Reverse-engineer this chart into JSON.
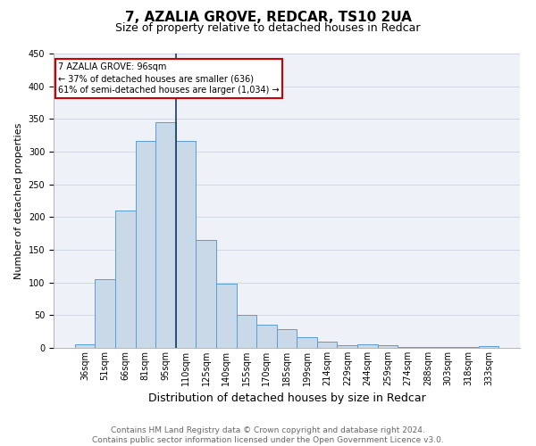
{
  "title": "7, AZALIA GROVE, REDCAR, TS10 2UA",
  "subtitle": "Size of property relative to detached houses in Redcar",
  "xlabel": "Distribution of detached houses by size in Redcar",
  "ylabel": "Number of detached properties",
  "categories": [
    "36sqm",
    "51sqm",
    "66sqm",
    "81sqm",
    "95sqm",
    "110sqm",
    "125sqm",
    "140sqm",
    "155sqm",
    "170sqm",
    "185sqm",
    "199sqm",
    "214sqm",
    "229sqm",
    "244sqm",
    "259sqm",
    "274sqm",
    "288sqm",
    "303sqm",
    "318sqm",
    "333sqm"
  ],
  "values": [
    6,
    105,
    210,
    316,
    345,
    316,
    165,
    98,
    50,
    35,
    29,
    17,
    9,
    4,
    5,
    4,
    2,
    2,
    2,
    2,
    3
  ],
  "bar_color": "#c9d9e8",
  "bar_edge_color": "#5b9bd5",
  "annotation_text_line1": "7 AZALIA GROVE: 96sqm",
  "annotation_text_line2": "← 37% of detached houses are smaller (636)",
  "annotation_text_line3": "61% of semi-detached houses are larger (1,034) →",
  "annotation_box_color": "#ffffff",
  "annotation_box_edge_color": "#cc0000",
  "vline_color": "#1a3a5c",
  "vline_index": 4,
  "ylim": [
    0,
    450
  ],
  "yticks": [
    0,
    50,
    100,
    150,
    200,
    250,
    300,
    350,
    400,
    450
  ],
  "footer_line1": "Contains HM Land Registry data © Crown copyright and database right 2024.",
  "footer_line2": "Contains public sector information licensed under the Open Government Licence v3.0.",
  "title_fontsize": 11,
  "subtitle_fontsize": 9,
  "xlabel_fontsize": 9,
  "ylabel_fontsize": 8,
  "tick_fontsize": 7,
  "footer_fontsize": 6.5,
  "grid_color": "#d0d8e8",
  "bg_color": "#eef2f8"
}
